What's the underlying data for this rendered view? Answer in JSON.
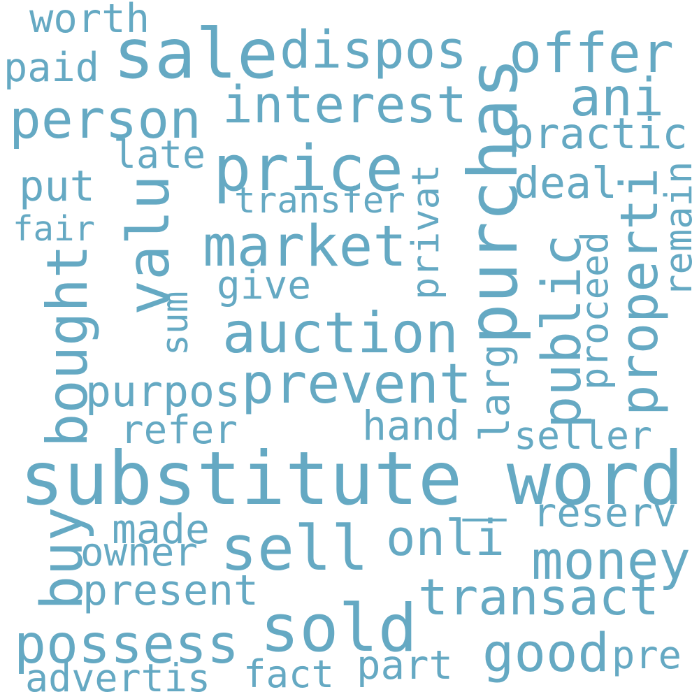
{
  "color": "#65a9c3",
  "words": [
    {
      "text": "worth"
    },
    {
      "text": "sale"
    },
    {
      "text": "dispos"
    },
    {
      "text": "offer"
    },
    {
      "text": "paid"
    },
    {
      "text": "person"
    },
    {
      "text": "interest"
    },
    {
      "text": "ani"
    },
    {
      "text": "purchas"
    },
    {
      "text": "practic"
    },
    {
      "text": "late"
    },
    {
      "text": "price"
    },
    {
      "text": "put"
    },
    {
      "text": "valu"
    },
    {
      "text": "deal"
    },
    {
      "text": "transfer"
    },
    {
      "text": "privat"
    },
    {
      "text": "properti"
    },
    {
      "text": "remain"
    },
    {
      "text": "fair"
    },
    {
      "text": "market"
    },
    {
      "text": "bought"
    },
    {
      "text": "public"
    },
    {
      "text": "proceed"
    },
    {
      "text": "give"
    },
    {
      "text": "sum"
    },
    {
      "text": "auction"
    },
    {
      "text": "purpos"
    },
    {
      "text": "prevent"
    },
    {
      "text": "larg"
    },
    {
      "text": "hand"
    },
    {
      "text": "refer"
    },
    {
      "text": "seller"
    },
    {
      "text": "substitute_word"
    },
    {
      "text": "buy"
    },
    {
      "text": "made"
    },
    {
      "text": "reserv"
    },
    {
      "text": "sell"
    },
    {
      "text": "onli"
    },
    {
      "text": "owner"
    },
    {
      "text": "money"
    },
    {
      "text": "present"
    },
    {
      "text": "transact"
    },
    {
      "text": "sold"
    },
    {
      "text": "possess"
    },
    {
      "text": "good"
    },
    {
      "text": "pre"
    },
    {
      "text": "part"
    },
    {
      "text": "fact"
    },
    {
      "text": "advertis"
    }
  ]
}
